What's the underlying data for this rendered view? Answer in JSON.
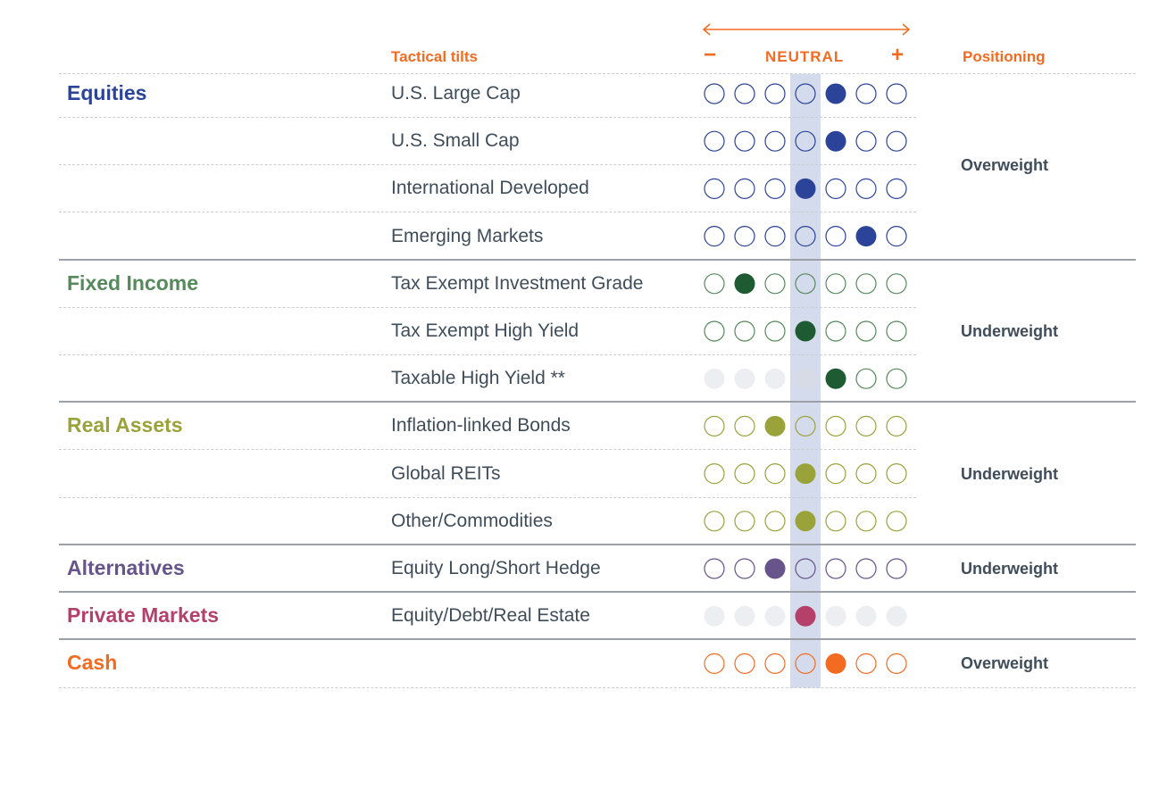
{
  "header": {
    "tilts_label": "Tactical tilts",
    "minus_symbol": "−",
    "neutral_label": "NEUTRAL",
    "plus_symbol": "+",
    "positioning_label": "Positioning",
    "accent_color": "#f26b21"
  },
  "chart_data": {
    "type": "table",
    "scale": {
      "min": -3,
      "max": 3,
      "neutral": 0,
      "steps": 7
    },
    "groups": [
      {
        "name": "Equities",
        "color": "#2b4499",
        "positioning": "Overweight",
        "rows": [
          {
            "label": "U.S. Large Cap",
            "tilt": 1,
            "available": true
          },
          {
            "label": "U.S. Small Cap",
            "tilt": 1,
            "available": true
          },
          {
            "label": "International Developed",
            "tilt": 0,
            "available": true
          },
          {
            "label": "Emerging Markets",
            "tilt": 2,
            "available": true
          }
        ]
      },
      {
        "name": "Fixed Income",
        "color": "#56895c",
        "fill_color": "#1e5a32",
        "positioning": "Underweight",
        "rows": [
          {
            "label": "Tax Exempt Investment Grade",
            "tilt": -2,
            "available": true
          },
          {
            "label": "Tax Exempt High Yield",
            "tilt": 0,
            "available": true
          },
          {
            "label": "Taxable High Yield **",
            "tilt": 1,
            "available": true,
            "greyed_below_tilt": true
          }
        ]
      },
      {
        "name": "Real Assets",
        "color": "#9aa33a",
        "positioning": "Underweight",
        "rows": [
          {
            "label": "Inflation-linked Bonds",
            "tilt": -1,
            "available": true
          },
          {
            "label": "Global REITs",
            "tilt": 0,
            "available": true
          },
          {
            "label": "Other/Commodities",
            "tilt": 0,
            "available": true
          }
        ]
      },
      {
        "name": "Alternatives",
        "color": "#66548a",
        "positioning": "Underweight",
        "rows": [
          {
            "label": "Equity Long/Short Hedge",
            "tilt": -1,
            "available": true
          }
        ]
      },
      {
        "name": "Private Markets",
        "color": "#b5406a",
        "positioning": "",
        "rows": [
          {
            "label": "Equity/Debt/Real Estate",
            "tilt": 0,
            "available": false
          }
        ]
      },
      {
        "name": "Cash",
        "color": "#f26b21",
        "positioning": "Overweight",
        "rows": [
          {
            "label": "",
            "tilt": 1,
            "available": true
          }
        ]
      }
    ]
  }
}
